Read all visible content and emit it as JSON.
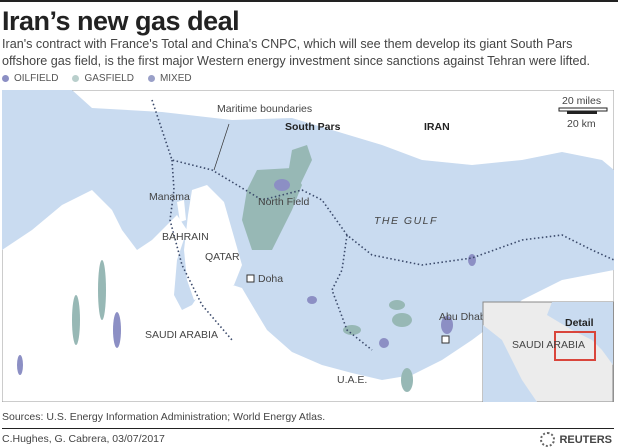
{
  "title": "Iran’s new gas deal",
  "subtitle": "Iran's contract with France's Total and China's CNPC, which will see them develop its giant South Pars offshore gas field, is the first major Western energy investment since sanctions against Tehran were lifted.",
  "legend": [
    {
      "label": "OILFIELD",
      "color": "#8c8fc4"
    },
    {
      "label": "GASFIELD",
      "color": "#a9c3c0"
    },
    {
      "label": "MIXED",
      "color": "#9aa0c8"
    }
  ],
  "map": {
    "water_color": "#c9dbf0",
    "land_color": "#ffffff",
    "labels": {
      "maritime": "Maritime boundaries",
      "south_pars": "South Pars",
      "north_field": "North Field",
      "iran": "IRAN",
      "gulf": "THE GULF",
      "manama": "Manama",
      "bahrain": "BAHRAIN",
      "qatar": "QATAR",
      "doha": "Doha",
      "saudi": "SAUDI ARABIA",
      "uae": "U.A.E.",
      "abu_dhabi": "Abu Dhabi"
    },
    "scale": {
      "miles": "20 miles",
      "km": "20 km"
    },
    "inset": {
      "saudi": "SAUDI ARABIA",
      "detail": "Detail",
      "detail_color": "#d9453b"
    }
  },
  "sources": "Sources: U.S. Energy Information Administration; World Energy Atlas.",
  "credit": "C.Hughes, G. Cabrera, 03/07/2017",
  "brand": "REUTERS"
}
